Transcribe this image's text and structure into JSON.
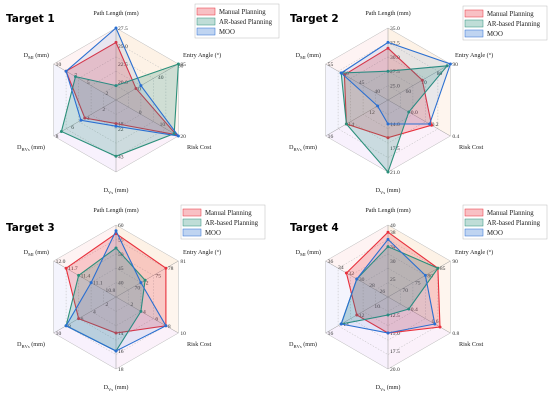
{
  "colors": {
    "manual": "#e8303c",
    "ar": "#2b8f7a",
    "moo": "#2a6fd1"
  },
  "axes_order": [
    "Path Length (mm)",
    "Entry Angle (°)",
    "Risk Cost",
    "D_Vs (mm)",
    "D_BVs (mm)",
    "D_MI (mm)"
  ],
  "chart_data": [
    {
      "type": "radar",
      "title": "Target 1",
      "axes": [
        {
          "label": "Path Length (mm)",
          "ticks": [
            "20.0",
            "22.5",
            "25.0",
            "27.5"
          ],
          "min": 17.5,
          "max": 27.5
        },
        {
          "label": "Entry Angle (°)",
          "ticks": [
            "0",
            "40",
            "80",
            "85"
          ],
          "min": -40,
          "max": 85
        },
        {
          "label": "Risk Cost",
          "ticks": [
            "0",
            "10",
            "20"
          ],
          "min": -10,
          "max": 20
        },
        {
          "label": "D",
          "sub": "Vs",
          "unit": "(mm)",
          "ticks": [
            "18",
            "22",
            "43"
          ],
          "min": 0,
          "max": 55
        },
        {
          "label": "D",
          "sub": "BVs",
          "unit": "(mm)",
          "ticks": [
            "2",
            "4",
            "6",
            "8"
          ],
          "min": 0,
          "max": 8
        },
        {
          "label": "D",
          "sub": "MI",
          "unit": "(mm)",
          "ticks": [
            "2",
            "5",
            "7",
            "10"
          ],
          "min": 0,
          "max": 10
        }
      ],
      "legend": [
        "Manual Planning",
        "AR-based Planning",
        "MOO"
      ],
      "series": [
        {
          "name": "Manual Planning",
          "values": [
            25.5,
            0,
            19,
            18,
            4,
            8
          ]
        },
        {
          "name": "AR-based Planning",
          "values": [
            19.5,
            85,
            18,
            43,
            7,
            6.5
          ]
        },
        {
          "name": "MOO",
          "values": [
            27.5,
            10,
            20,
            20,
            4.5,
            8
          ]
        }
      ]
    },
    {
      "type": "radar",
      "title": "Target 2",
      "axes": [
        {
          "label": "Path Length (mm)",
          "ticks": [
            "25.0",
            "27.5",
            "30.0",
            "32.5",
            "35.0"
          ],
          "min": 22.5,
          "max": 35.0
        },
        {
          "label": "Entry Angle (°)",
          "ticks": [
            "60",
            "70",
            "80",
            "90"
          ],
          "min": 50,
          "max": 90
        },
        {
          "label": "Risk Cost",
          "ticks": [
            "0.0",
            "0.2",
            "0.4"
          ],
          "min": -0.2,
          "max": 0.4
        },
        {
          "label": "D",
          "sub": "Vs",
          "unit": "(mm)",
          "ticks": [
            "14.0",
            "17.5",
            "21.0"
          ],
          "min": 10.5,
          "max": 21.0
        },
        {
          "label": "D",
          "sub": "BVs",
          "unit": "(mm)",
          "ticks": [
            "12",
            "14",
            "16"
          ],
          "min": 10,
          "max": 16
        },
        {
          "label": "D",
          "sub": "MI",
          "unit": "(mm)",
          "ticks": [
            "40",
            "45",
            "50",
            "55"
          ],
          "min": 35,
          "max": 55
        }
      ],
      "legend": [
        "Manual Planning",
        "AR-based Planning",
        "MOO"
      ],
      "series": [
        {
          "name": "Manual Planning",
          "values": [
            31.5,
            72,
            0.22,
            16,
            14,
            49
          ]
        },
        {
          "name": "AR-based Planning",
          "values": [
            27.5,
            88,
            0.0,
            21,
            14,
            50
          ]
        },
        {
          "name": "MOO",
          "values": [
            32.5,
            90,
            0.2,
            14,
            11,
            50
          ]
        }
      ]
    },
    {
      "type": "radar",
      "title": "Target 3",
      "axes": [
        {
          "label": "Path Length (mm)",
          "ticks": [
            "40",
            "45",
            "50",
            "55",
            "60"
          ],
          "min": 35,
          "max": 60
        },
        {
          "label": "Entry Angle (°)",
          "ticks": [
            "70",
            "72",
            "75",
            "78",
            "81"
          ],
          "min": 66,
          "max": 81
        },
        {
          "label": "Risk Cost",
          "ticks": [
            "2",
            "4",
            "6",
            "8",
            "10"
          ],
          "min": 0,
          "max": 10
        },
        {
          "label": "D",
          "sub": "Vs",
          "unit": "(mm)",
          "ticks": [
            "14",
            "16",
            "18"
          ],
          "min": 10,
          "max": 18
        },
        {
          "label": "D",
          "sub": "BVs",
          "unit": "(mm)",
          "ticks": [
            "2",
            "4",
            "6",
            "8",
            "10"
          ],
          "min": 0,
          "max": 10
        },
        {
          "label": "D",
          "sub": "MI",
          "unit": "(mm)",
          "ticks": [
            "10.8",
            "11.1",
            "11.4",
            "11.7",
            "12.0"
          ],
          "min": 10.5,
          "max": 12.0
        }
      ],
      "legend": [
        "Manual Planning",
        "AR-based Planning",
        "MOO"
      ],
      "series": [
        {
          "name": "Manual Planning",
          "values": [
            57,
            78,
            8,
            14,
            6,
            11.7
          ]
        },
        {
          "name": "AR-based Planning",
          "values": [
            52,
            73,
            4,
            16,
            8,
            11.4
          ]
        },
        {
          "name": "MOO",
          "values": [
            58,
            72,
            8,
            16,
            8,
            11.1
          ]
        }
      ]
    },
    {
      "type": "radar",
      "title": "Target 4",
      "axes": [
        {
          "label": "Path Length (mm)",
          "ticks": [
            "25",
            "30",
            "34",
            "38",
            "40"
          ],
          "min": 20,
          "max": 40
        },
        {
          "label": "Entry Angle (°)",
          "ticks": [
            "70",
            "75",
            "80",
            "85",
            "90"
          ],
          "min": 65,
          "max": 90
        },
        {
          "label": "Risk Cost",
          "ticks": [
            "0.4",
            "0.6",
            "0.8"
          ],
          "min": 0.2,
          "max": 0.8
        },
        {
          "label": "D",
          "sub": "Vs",
          "unit": "(mm)",
          "ticks": [
            "12.5",
            "15.0",
            "17.5",
            "20.0"
          ],
          "min": 10.0,
          "max": 20.0
        },
        {
          "label": "D",
          "sub": "BVs",
          "unit": "(mm)",
          "ticks": [
            "10",
            "12",
            "14",
            "16"
          ],
          "min": 8,
          "max": 16
        },
        {
          "label": "D",
          "sub": "MI",
          "unit": "(mm)",
          "ticks": [
            "26",
            "28",
            "30",
            "32",
            "34",
            "36"
          ],
          "min": 24,
          "max": 36
        }
      ],
      "legend": [
        "Manual Planning",
        "AR-based Planning",
        "MOO"
      ],
      "series": [
        {
          "name": "Manual Planning",
          "values": [
            38,
            85,
            0.7,
            15,
            12,
            32
          ]
        },
        {
          "name": "AR-based Planning",
          "values": [
            34,
            85,
            0.4,
            12.5,
            14,
            30
          ]
        },
        {
          "name": "MOO",
          "values": [
            36,
            80,
            0.65,
            15,
            14,
            30
          ]
        }
      ]
    }
  ]
}
